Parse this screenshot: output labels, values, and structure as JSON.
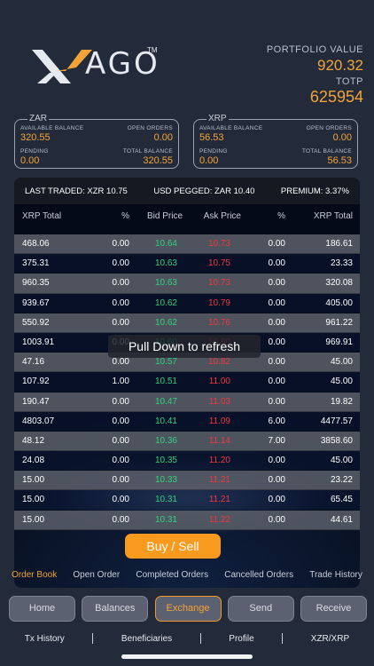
{
  "brand": {
    "name": "AGO",
    "tm": "TM",
    "accent": "#f4a436"
  },
  "portfolio": {
    "label": "PORTFOLIO VALUE",
    "value": "920.32",
    "totp_label": "TOTP",
    "totp_value": "625954"
  },
  "balances": [
    {
      "currency": "ZAR",
      "available_label": "AVAILABLE BALANCE",
      "available": "320.55",
      "open_label": "OPEN ORDERS",
      "open": "0.00",
      "pending_label": "PENDING",
      "pending": "0.00",
      "total_label": "TOTAL BALANCE",
      "total": "320.55"
    },
    {
      "currency": "XRP",
      "available_label": "AVAILABLE BALANCE",
      "available": "56.53",
      "open_label": "OPEN ORDERS",
      "open": "0.00",
      "pending_label": "PENDING",
      "pending": "0.00",
      "total_label": "TOTAL BALANCE",
      "total": "56.53"
    }
  ],
  "ticker": {
    "last_traded": "LAST TRADED: XZR 10.75",
    "usd_pegged": "USD PEGGED: ZAR 10.40",
    "premium": "PREMIUM: 3.37%"
  },
  "columns": [
    "XRP Total",
    "%",
    "Bid Price",
    "Ask Price",
    "%",
    "XRP Total"
  ],
  "orders": [
    [
      "468.06",
      "0.00",
      "10.64",
      "10.73",
      "0.00",
      "186.61"
    ],
    [
      "375.31",
      "0.00",
      "10.63",
      "10.75",
      "0.00",
      "23.33"
    ],
    [
      "960.35",
      "0.00",
      "10.63",
      "10.73",
      "0.00",
      "320.08"
    ],
    [
      "939.67",
      "0.00",
      "10.62",
      "10.79",
      "0.00",
      "405.00"
    ],
    [
      "550.92",
      "0.00",
      "10.62",
      "10.76",
      "0.00",
      "961.22"
    ],
    [
      "1003.91",
      "0.00",
      "10.60",
      "10.80",
      "0.00",
      "969.91"
    ],
    [
      "47.16",
      "0.00",
      "10.57",
      "10.82",
      "0.00",
      "45.00"
    ],
    [
      "107.92",
      "1.00",
      "10.51",
      "11.00",
      "0.00",
      "45.00"
    ],
    [
      "190.47",
      "0.00",
      "10.47",
      "11.03",
      "0.00",
      "19.82"
    ],
    [
      "4803.07",
      "0.00",
      "10.41",
      "11.09",
      "6.00",
      "4477.57"
    ],
    [
      "48.12",
      "0.00",
      "10.36",
      "11.14",
      "7.00",
      "3858.60"
    ],
    [
      "24.08",
      "0.00",
      "10.35",
      "11.20",
      "0.00",
      "45.00"
    ],
    [
      "15.00",
      "0.00",
      "10.33",
      "11.21",
      "0.00",
      "23.22"
    ],
    [
      "15.00",
      "0.00",
      "10.31",
      "11.21",
      "0.00",
      "65.45"
    ],
    [
      "15.00",
      "0.00",
      "10.31",
      "11.22",
      "0.00",
      "44.61"
    ]
  ],
  "toast": "Pull Down to refresh",
  "buy_sell": "Buy / Sell",
  "tabs": [
    "Order Book",
    "Open Order",
    "Completed Orders",
    "Cancelled Orders",
    "Trade History"
  ],
  "nav": [
    "Home",
    "Balances",
    "Exchange",
    "Send",
    "Receive"
  ],
  "links": [
    "Tx History",
    "Beneficiaries",
    "Profile",
    "XZR/XRP"
  ]
}
